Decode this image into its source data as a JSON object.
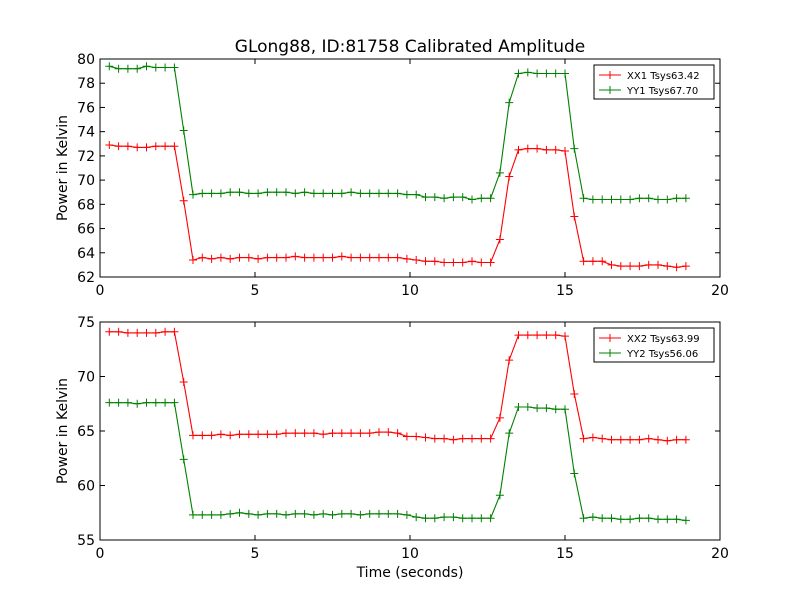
{
  "figure": {
    "title": "GLong88, ID:81758 Calibrated Amplitude"
  },
  "chart_data": [
    {
      "type": "line",
      "title": "GLong88, ID:81758 Calibrated Amplitude",
      "xlabel": "",
      "ylabel": "Power in Kelvin",
      "xlim": [
        0,
        20
      ],
      "ylim": [
        62,
        80
      ],
      "xticks": [
        0,
        5,
        10,
        15,
        20
      ],
      "yticks": [
        62,
        64,
        66,
        68,
        70,
        72,
        74,
        76,
        78,
        80
      ],
      "grid": false,
      "legend_position": "top-right",
      "x": [
        0.3,
        0.6,
        0.9,
        1.2,
        1.5,
        1.8,
        2.1,
        2.4,
        2.7,
        3.0,
        3.3,
        3.6,
        3.9,
        4.2,
        4.5,
        4.8,
        5.1,
        5.4,
        5.7,
        6.0,
        6.3,
        6.6,
        6.9,
        7.2,
        7.5,
        7.8,
        8.1,
        8.4,
        8.7,
        9.0,
        9.3,
        9.6,
        9.9,
        10.2,
        10.5,
        10.8,
        11.1,
        11.4,
        11.7,
        12.0,
        12.3,
        12.6,
        12.9,
        13.2,
        13.5,
        13.8,
        14.1,
        14.4,
        14.7,
        15.0,
        15.3,
        15.6,
        15.9,
        16.2,
        16.5,
        16.8,
        17.1,
        17.4,
        17.7,
        18.0,
        18.3,
        18.6,
        18.9
      ],
      "series": [
        {
          "name": "XX1 Tsys63.42",
          "color": "#ff0000",
          "values": [
            72.9,
            72.8,
            72.8,
            72.7,
            72.7,
            72.8,
            72.8,
            72.8,
            68.3,
            63.4,
            63.6,
            63.5,
            63.6,
            63.5,
            63.6,
            63.6,
            63.5,
            63.6,
            63.6,
            63.6,
            63.7,
            63.6,
            63.6,
            63.6,
            63.6,
            63.7,
            63.6,
            63.6,
            63.6,
            63.6,
            63.6,
            63.6,
            63.5,
            63.4,
            63.3,
            63.3,
            63.2,
            63.2,
            63.2,
            63.3,
            63.2,
            63.2,
            65.1,
            70.3,
            72.5,
            72.6,
            72.6,
            72.5,
            72.5,
            72.4,
            67.0,
            63.3,
            63.3,
            63.3,
            63.0,
            62.9,
            62.9,
            62.9,
            63.0,
            63.0,
            62.9,
            62.8,
            62.9
          ]
        },
        {
          "name": "YY1 Tsys67.70",
          "color": "#008000",
          "values": [
            79.4,
            79.2,
            79.2,
            79.2,
            79.4,
            79.3,
            79.3,
            79.3,
            74.1,
            68.8,
            68.9,
            68.9,
            68.9,
            69.0,
            69.0,
            68.9,
            68.9,
            69.0,
            69.0,
            69.0,
            68.9,
            69.0,
            68.9,
            68.9,
            68.9,
            68.9,
            69.0,
            68.9,
            68.9,
            68.9,
            68.9,
            68.9,
            68.8,
            68.8,
            68.6,
            68.6,
            68.5,
            68.6,
            68.6,
            68.4,
            68.5,
            68.5,
            70.6,
            76.4,
            78.8,
            78.9,
            78.8,
            78.8,
            78.8,
            78.8,
            72.6,
            68.5,
            68.4,
            68.4,
            68.4,
            68.4,
            68.4,
            68.5,
            68.5,
            68.4,
            68.4,
            68.5,
            68.5
          ]
        }
      ]
    },
    {
      "type": "line",
      "title": "",
      "xlabel": "Time (seconds)",
      "ylabel": "Power in Kelvin",
      "xlim": [
        0,
        20
      ],
      "ylim": [
        55,
        75
      ],
      "xticks": [
        0,
        5,
        10,
        15,
        20
      ],
      "yticks": [
        55,
        60,
        65,
        70,
        75
      ],
      "grid": false,
      "legend_position": "top-right",
      "x": [
        0.3,
        0.6,
        0.9,
        1.2,
        1.5,
        1.8,
        2.1,
        2.4,
        2.7,
        3.0,
        3.3,
        3.6,
        3.9,
        4.2,
        4.5,
        4.8,
        5.1,
        5.4,
        5.7,
        6.0,
        6.3,
        6.6,
        6.9,
        7.2,
        7.5,
        7.8,
        8.1,
        8.4,
        8.7,
        9.0,
        9.3,
        9.6,
        9.9,
        10.2,
        10.5,
        10.8,
        11.1,
        11.4,
        11.7,
        12.0,
        12.3,
        12.6,
        12.9,
        13.2,
        13.5,
        13.8,
        14.1,
        14.4,
        14.7,
        15.0,
        15.3,
        15.6,
        15.9,
        16.2,
        16.5,
        16.8,
        17.1,
        17.4,
        17.7,
        18.0,
        18.3,
        18.6,
        18.9
      ],
      "series": [
        {
          "name": "XX2 Tsys63.99",
          "color": "#ff0000",
          "values": [
            74.1,
            74.1,
            74.0,
            74.0,
            74.0,
            74.0,
            74.1,
            74.1,
            69.5,
            64.6,
            64.6,
            64.6,
            64.7,
            64.6,
            64.7,
            64.7,
            64.7,
            64.7,
            64.7,
            64.8,
            64.8,
            64.8,
            64.8,
            64.7,
            64.8,
            64.8,
            64.8,
            64.8,
            64.8,
            64.9,
            64.9,
            64.8,
            64.5,
            64.5,
            64.4,
            64.3,
            64.3,
            64.2,
            64.3,
            64.3,
            64.3,
            64.3,
            66.2,
            71.5,
            73.8,
            73.8,
            73.8,
            73.8,
            73.8,
            73.7,
            68.4,
            64.3,
            64.4,
            64.3,
            64.2,
            64.2,
            64.2,
            64.2,
            64.3,
            64.2,
            64.1,
            64.2,
            64.2
          ]
        },
        {
          "name": "YY2 Tsys56.06",
          "color": "#008000",
          "values": [
            67.6,
            67.6,
            67.6,
            67.5,
            67.6,
            67.6,
            67.6,
            67.6,
            62.4,
            57.3,
            57.3,
            57.3,
            57.3,
            57.4,
            57.5,
            57.4,
            57.3,
            57.4,
            57.4,
            57.3,
            57.4,
            57.4,
            57.3,
            57.4,
            57.3,
            57.4,
            57.4,
            57.3,
            57.4,
            57.4,
            57.4,
            57.4,
            57.3,
            57.1,
            57.0,
            57.0,
            57.1,
            57.1,
            57.0,
            57.0,
            57.0,
            57.0,
            59.1,
            64.8,
            67.2,
            67.2,
            67.1,
            67.1,
            67.0,
            67.0,
            61.1,
            57.0,
            57.1,
            57.0,
            57.0,
            56.9,
            56.9,
            57.0,
            57.0,
            56.9,
            56.9,
            56.9,
            56.8
          ]
        }
      ]
    }
  ]
}
